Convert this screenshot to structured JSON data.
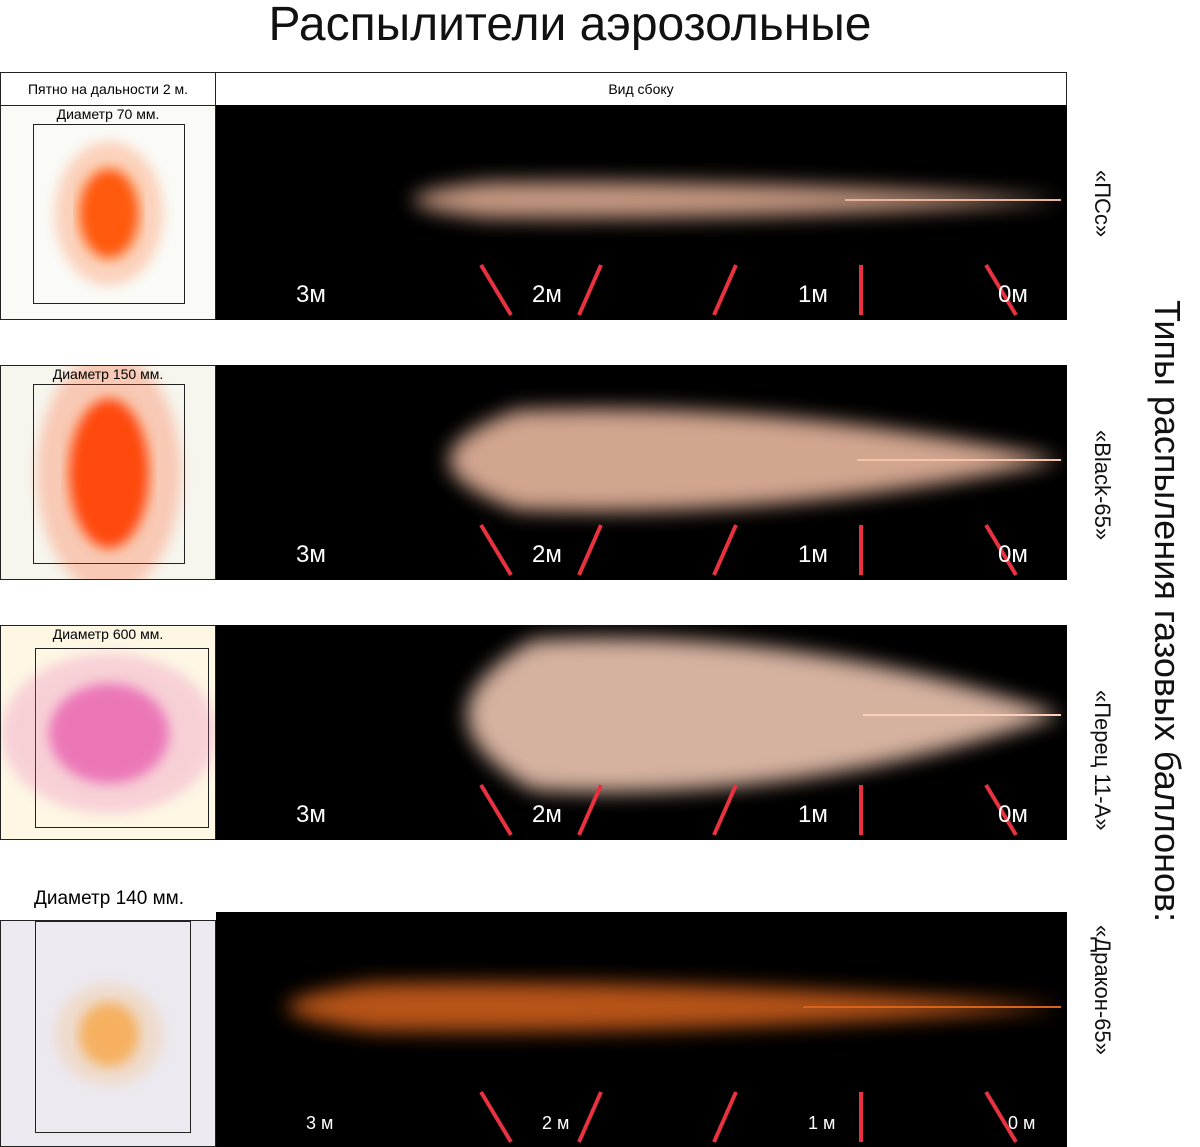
{
  "header": {
    "title": "Распылители аэрозольные",
    "columns": [
      "Пятно на дальности 2 м.",
      "Вид сбоку"
    ]
  },
  "side_label": "Типы распыления газовых баллонов:",
  "rows": [
    {
      "spot_label": "Диаметр 70 мм.",
      "name": "«ПСс»",
      "distance_labels": [
        "3м",
        "2м",
        "1м",
        "0м"
      ]
    },
    {
      "spot_label": "Диаметр 150 мм.",
      "name": "«Black-65»",
      "distance_labels": [
        "3м",
        "2м",
        "1м",
        "0м"
      ]
    },
    {
      "spot_label": "Диаметр 600 мм.",
      "name": "«Перец 11-А»",
      "distance_labels": [
        "3м",
        "2м",
        "1м",
        "0м"
      ]
    },
    {
      "spot_label": "Диаметр 140 мм.",
      "name": "«Дракон-65»",
      "distance_labels": [
        "3 м",
        "2 м",
        "1 м",
        "0 м"
      ]
    }
  ]
}
